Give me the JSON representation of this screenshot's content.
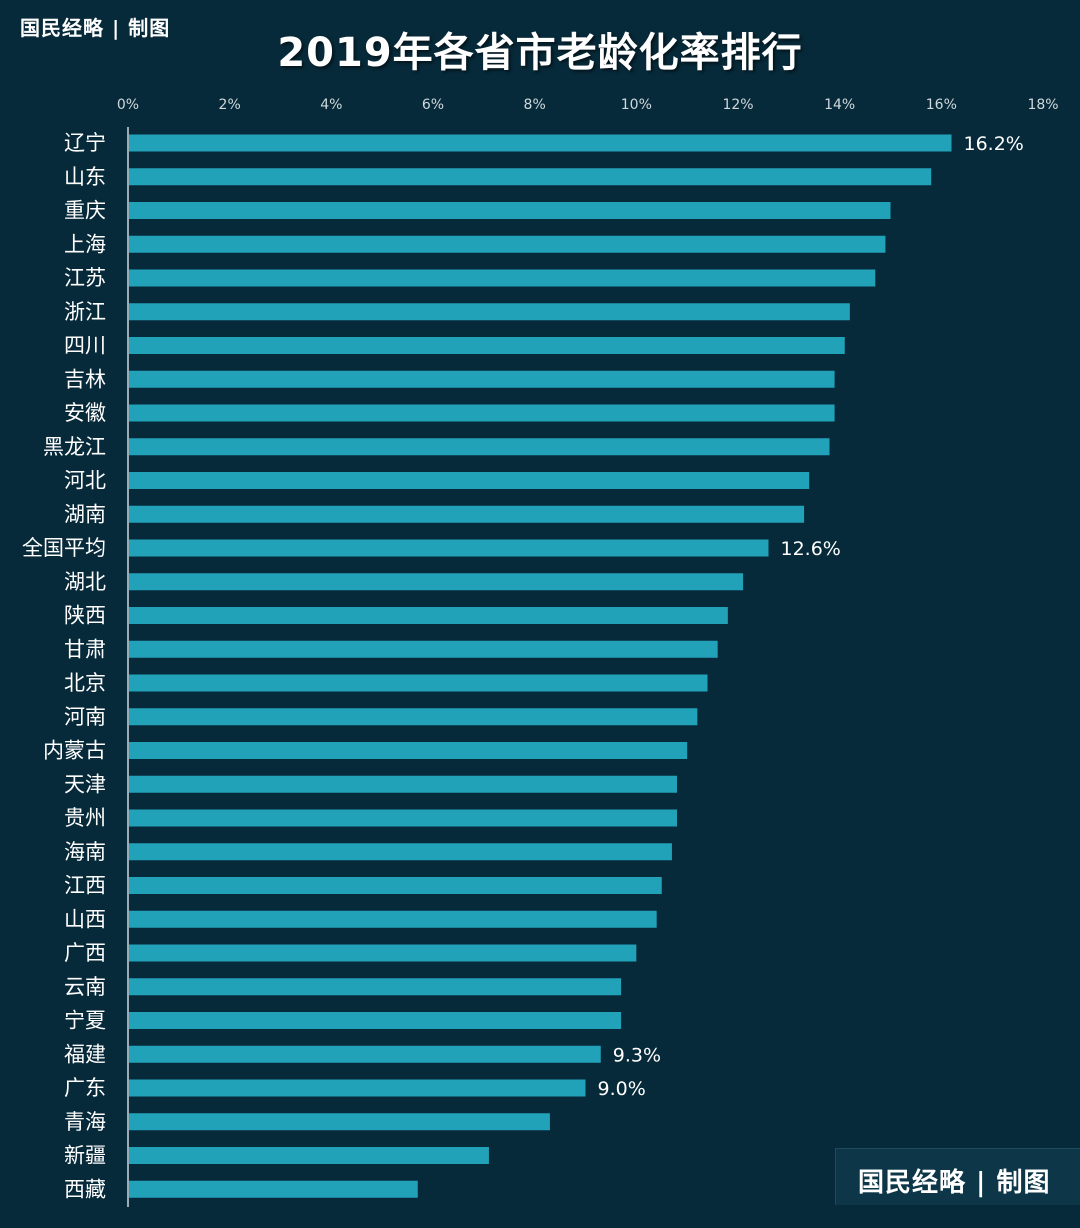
{
  "brand": {
    "text": "国民经略 | 制图"
  },
  "colors": {
    "background": "#072a3a",
    "bar": "#22a2b9",
    "text": "#ffffff",
    "axis": "#cfd8dc"
  },
  "chart_data": {
    "type": "bar",
    "orientation": "horizontal",
    "title": "2019年各省市老龄化率排行",
    "xlabel": "",
    "ylabel": "",
    "xlim": [
      0,
      18
    ],
    "x_ticks": [
      "0%",
      "2%",
      "4%",
      "6%",
      "8%",
      "10%",
      "12%",
      "14%",
      "16%",
      "18%"
    ],
    "grid": false,
    "categories": [
      "辽宁",
      "山东",
      "重庆",
      "上海",
      "江苏",
      "浙江",
      "四川",
      "吉林",
      "安徽",
      "黑龙江",
      "河北",
      "湖南",
      "全国平均",
      "湖北",
      "陕西",
      "甘肃",
      "北京",
      "河南",
      "内蒙古",
      "天津",
      "贵州",
      "海南",
      "江西",
      "山西",
      "广西",
      "云南",
      "宁夏",
      "福建",
      "广东",
      "青海",
      "新疆",
      "西藏"
    ],
    "values": [
      16.2,
      15.8,
      15.0,
      14.9,
      14.7,
      14.2,
      14.1,
      13.9,
      13.9,
      13.8,
      13.4,
      13.3,
      12.6,
      12.1,
      11.8,
      11.6,
      11.4,
      11.2,
      11.0,
      10.8,
      10.8,
      10.7,
      10.5,
      10.4,
      10.0,
      9.7,
      9.7,
      9.3,
      9.0,
      8.3,
      7.1,
      5.7
    ],
    "data_labels": {
      "辽宁": "16.2%",
      "全国平均": "12.6%",
      "福建": "9.3%",
      "广东": "9.0%"
    }
  }
}
